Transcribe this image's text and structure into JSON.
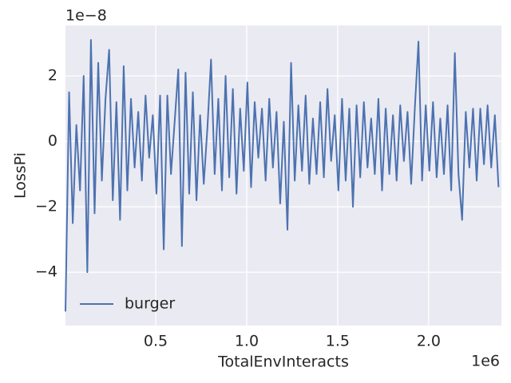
{
  "chart_data": {
    "type": "line",
    "x_label": "TotalEnvInteracts",
    "y_label": "LossPi",
    "x_offset_label": "1e6",
    "y_offset_label": "1e−8",
    "x": [
      0.004,
      0.024,
      0.044,
      0.064,
      0.084,
      0.104,
      0.124,
      0.144,
      0.164,
      0.184,
      0.204,
      0.224,
      0.244,
      0.264,
      0.284,
      0.304,
      0.324,
      0.344,
      0.364,
      0.384,
      0.404,
      0.424,
      0.444,
      0.464,
      0.484,
      0.504,
      0.524,
      0.544,
      0.564,
      0.584,
      0.604,
      0.624,
      0.644,
      0.664,
      0.684,
      0.704,
      0.724,
      0.744,
      0.764,
      0.784,
      0.804,
      0.824,
      0.844,
      0.864,
      0.884,
      0.904,
      0.924,
      0.944,
      0.964,
      0.984,
      1.004,
      1.024,
      1.044,
      1.064,
      1.084,
      1.104,
      1.124,
      1.144,
      1.164,
      1.184,
      1.204,
      1.224,
      1.244,
      1.264,
      1.284,
      1.304,
      1.324,
      1.344,
      1.364,
      1.384,
      1.404,
      1.424,
      1.444,
      1.464,
      1.484,
      1.504,
      1.524,
      1.544,
      1.564,
      1.584,
      1.604,
      1.624,
      1.644,
      1.664,
      1.684,
      1.704,
      1.724,
      1.744,
      1.764,
      1.784,
      1.804,
      1.824,
      1.844,
      1.864,
      1.884,
      1.904,
      1.924,
      1.944,
      1.964,
      1.984,
      2.004,
      2.024,
      2.044,
      2.064,
      2.084,
      2.104,
      2.124,
      2.144,
      2.164,
      2.184,
      2.204,
      2.224,
      2.244,
      2.264,
      2.284,
      2.304,
      2.324,
      2.344,
      2.364,
      2.384
    ],
    "series": [
      {
        "name": "burger",
        "color": "#4c72b0",
        "values": [
          -5.2,
          1.5,
          -2.5,
          0.5,
          -1.5,
          2.0,
          -4.0,
          3.1,
          -2.2,
          2.4,
          -1.2,
          1.3,
          2.8,
          -1.8,
          1.2,
          -2.4,
          2.3,
          -1.5,
          1.3,
          -0.8,
          0.9,
          -1.2,
          1.4,
          -0.5,
          0.8,
          -1.6,
          1.4,
          -3.3,
          1.4,
          -1.0,
          0.6,
          2.2,
          -3.2,
          2.1,
          -1.6,
          1.5,
          -1.8,
          0.8,
          -1.3,
          0.4,
          2.5,
          -1.0,
          1.3,
          -1.5,
          2.0,
          -1.1,
          1.6,
          -1.6,
          1.0,
          -0.9,
          1.8,
          -1.4,
          1.2,
          -0.5,
          1.0,
          -1.2,
          1.3,
          -0.8,
          0.9,
          -1.9,
          0.6,
          -2.7,
          2.4,
          -1.2,
          1.1,
          -0.9,
          1.4,
          -1.3,
          0.7,
          -1.0,
          1.2,
          -1.1,
          1.6,
          -0.6,
          0.8,
          -1.5,
          1.3,
          -1.2,
          1.0,
          -2.0,
          1.1,
          -1.1,
          1.2,
          -0.8,
          0.7,
          -1.0,
          1.3,
          -1.5,
          1.0,
          -1.0,
          0.8,
          -1.2,
          1.1,
          -0.6,
          0.9,
          -1.3,
          1.0,
          3.05,
          -1.2,
          1.1,
          -0.9,
          1.2,
          -1.1,
          0.7,
          -1.0,
          1.1,
          -1.5,
          2.7,
          -1.0,
          -2.4,
          0.9,
          -0.8,
          1.0,
          -1.2,
          1.0,
          -0.7,
          1.1,
          -0.8,
          0.8,
          -1.4
        ]
      }
    ],
    "xlim": [
      0.004,
      2.4
    ],
    "ylim": [
      -5.63,
      3.54
    ],
    "xticks": [
      0.5,
      {
        "value": 1.0,
        "label": "1.0"
      },
      1.5,
      {
        "value": 2.0,
        "label": "2.0"
      }
    ],
    "yticks": [
      {
        "value": -4,
        "label": "−4"
      },
      {
        "value": -2,
        "label": "−2"
      },
      0,
      2
    ],
    "grid": true,
    "legend": "lower left"
  }
}
